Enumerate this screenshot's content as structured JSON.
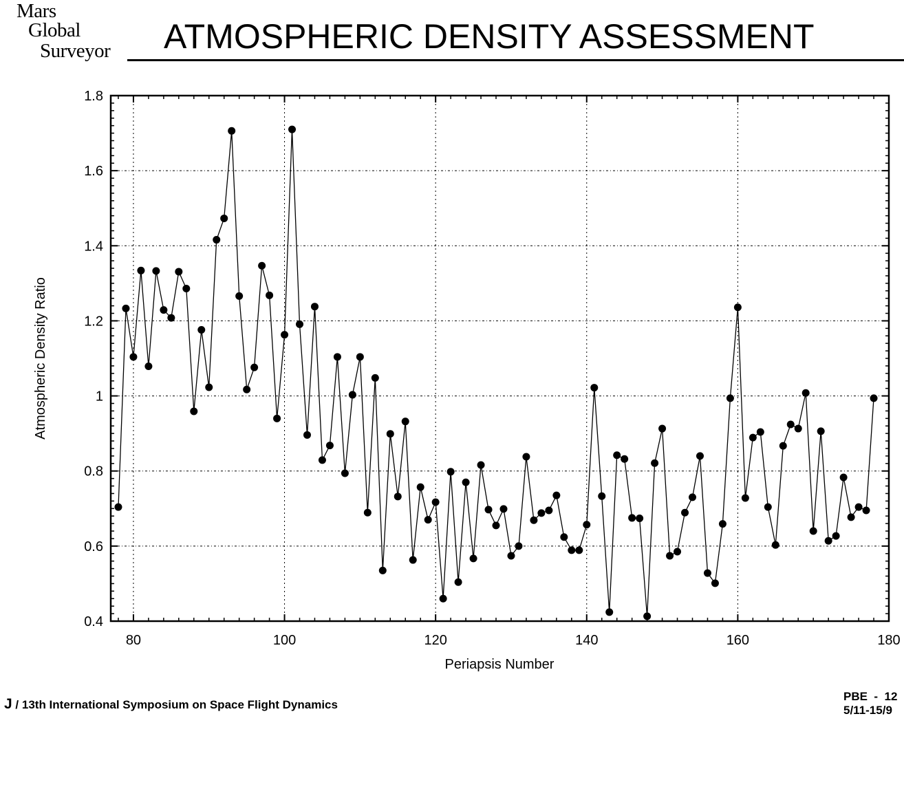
{
  "header": {
    "logo_lines": [
      "Mars",
      "Global",
      "Surveyor"
    ],
    "title": "ATMOSPHERIC DENSITY ASSESSMENT"
  },
  "footer": {
    "left_mark": "J",
    "left_text": "/ 13th International Symposium on Space Flight Dynamics",
    "right_line1": "PBE  -  12",
    "right_line2": "5/11-15/9"
  },
  "chart_data": {
    "type": "line",
    "title": "ATMOSPHERIC DENSITY ASSESSMENT",
    "xlabel": "Periapsis Number",
    "ylabel": "Atmospheric Density Ratio",
    "xlim": [
      77,
      180
    ],
    "ylim": [
      0.4,
      1.8
    ],
    "xticks": [
      80,
      100,
      120,
      140,
      160,
      180
    ],
    "yticks": [
      0.4,
      0.6,
      0.8,
      1,
      1.2,
      1.4,
      1.6,
      1.8
    ],
    "xtick_labels": [
      "80",
      "100",
      "120",
      "140",
      "160",
      "180"
    ],
    "ytick_labels": [
      "0.4",
      "0.6",
      "0.8",
      "1",
      "1.2",
      "1.4",
      "1.6",
      "1.8"
    ],
    "grid": true,
    "marker": "filled-circle",
    "x_start": 78,
    "series": [
      {
        "name": "Density ratio",
        "values": [
          0.704,
          1.233,
          1.104,
          1.334,
          1.079,
          1.333,
          1.229,
          1.208,
          1.331,
          1.286,
          0.959,
          1.176,
          1.023,
          1.416,
          1.473,
          1.706,
          1.266,
          1.017,
          1.076,
          1.347,
          1.268,
          0.94,
          1.163,
          1.71,
          1.191,
          0.896,
          1.238,
          0.829,
          0.868,
          1.104,
          0.794,
          1.003,
          1.104,
          0.689,
          1.048,
          0.535,
          0.899,
          0.732,
          0.932,
          0.563,
          0.757,
          0.67,
          0.717,
          0.46,
          0.798,
          0.504,
          0.77,
          0.567,
          0.816,
          0.697,
          0.655,
          0.699,
          0.574,
          0.6,
          0.838,
          0.669,
          0.688,
          0.695,
          0.735,
          0.624,
          0.589,
          0.589,
          0.657,
          1.022,
          0.733,
          0.424,
          0.842,
          0.832,
          0.675,
          0.674,
          0.413,
          0.821,
          0.913,
          0.574,
          0.585,
          0.689,
          0.73,
          0.84,
          0.528,
          0.501,
          0.659,
          0.994,
          1.236,
          0.728,
          0.889,
          0.904,
          0.704,
          0.603,
          0.867,
          0.924,
          0.913,
          1.008,
          0.64,
          0.906,
          0.614,
          0.627,
          0.783,
          0.677,
          0.704,
          0.695,
          0.994
        ]
      }
    ]
  }
}
